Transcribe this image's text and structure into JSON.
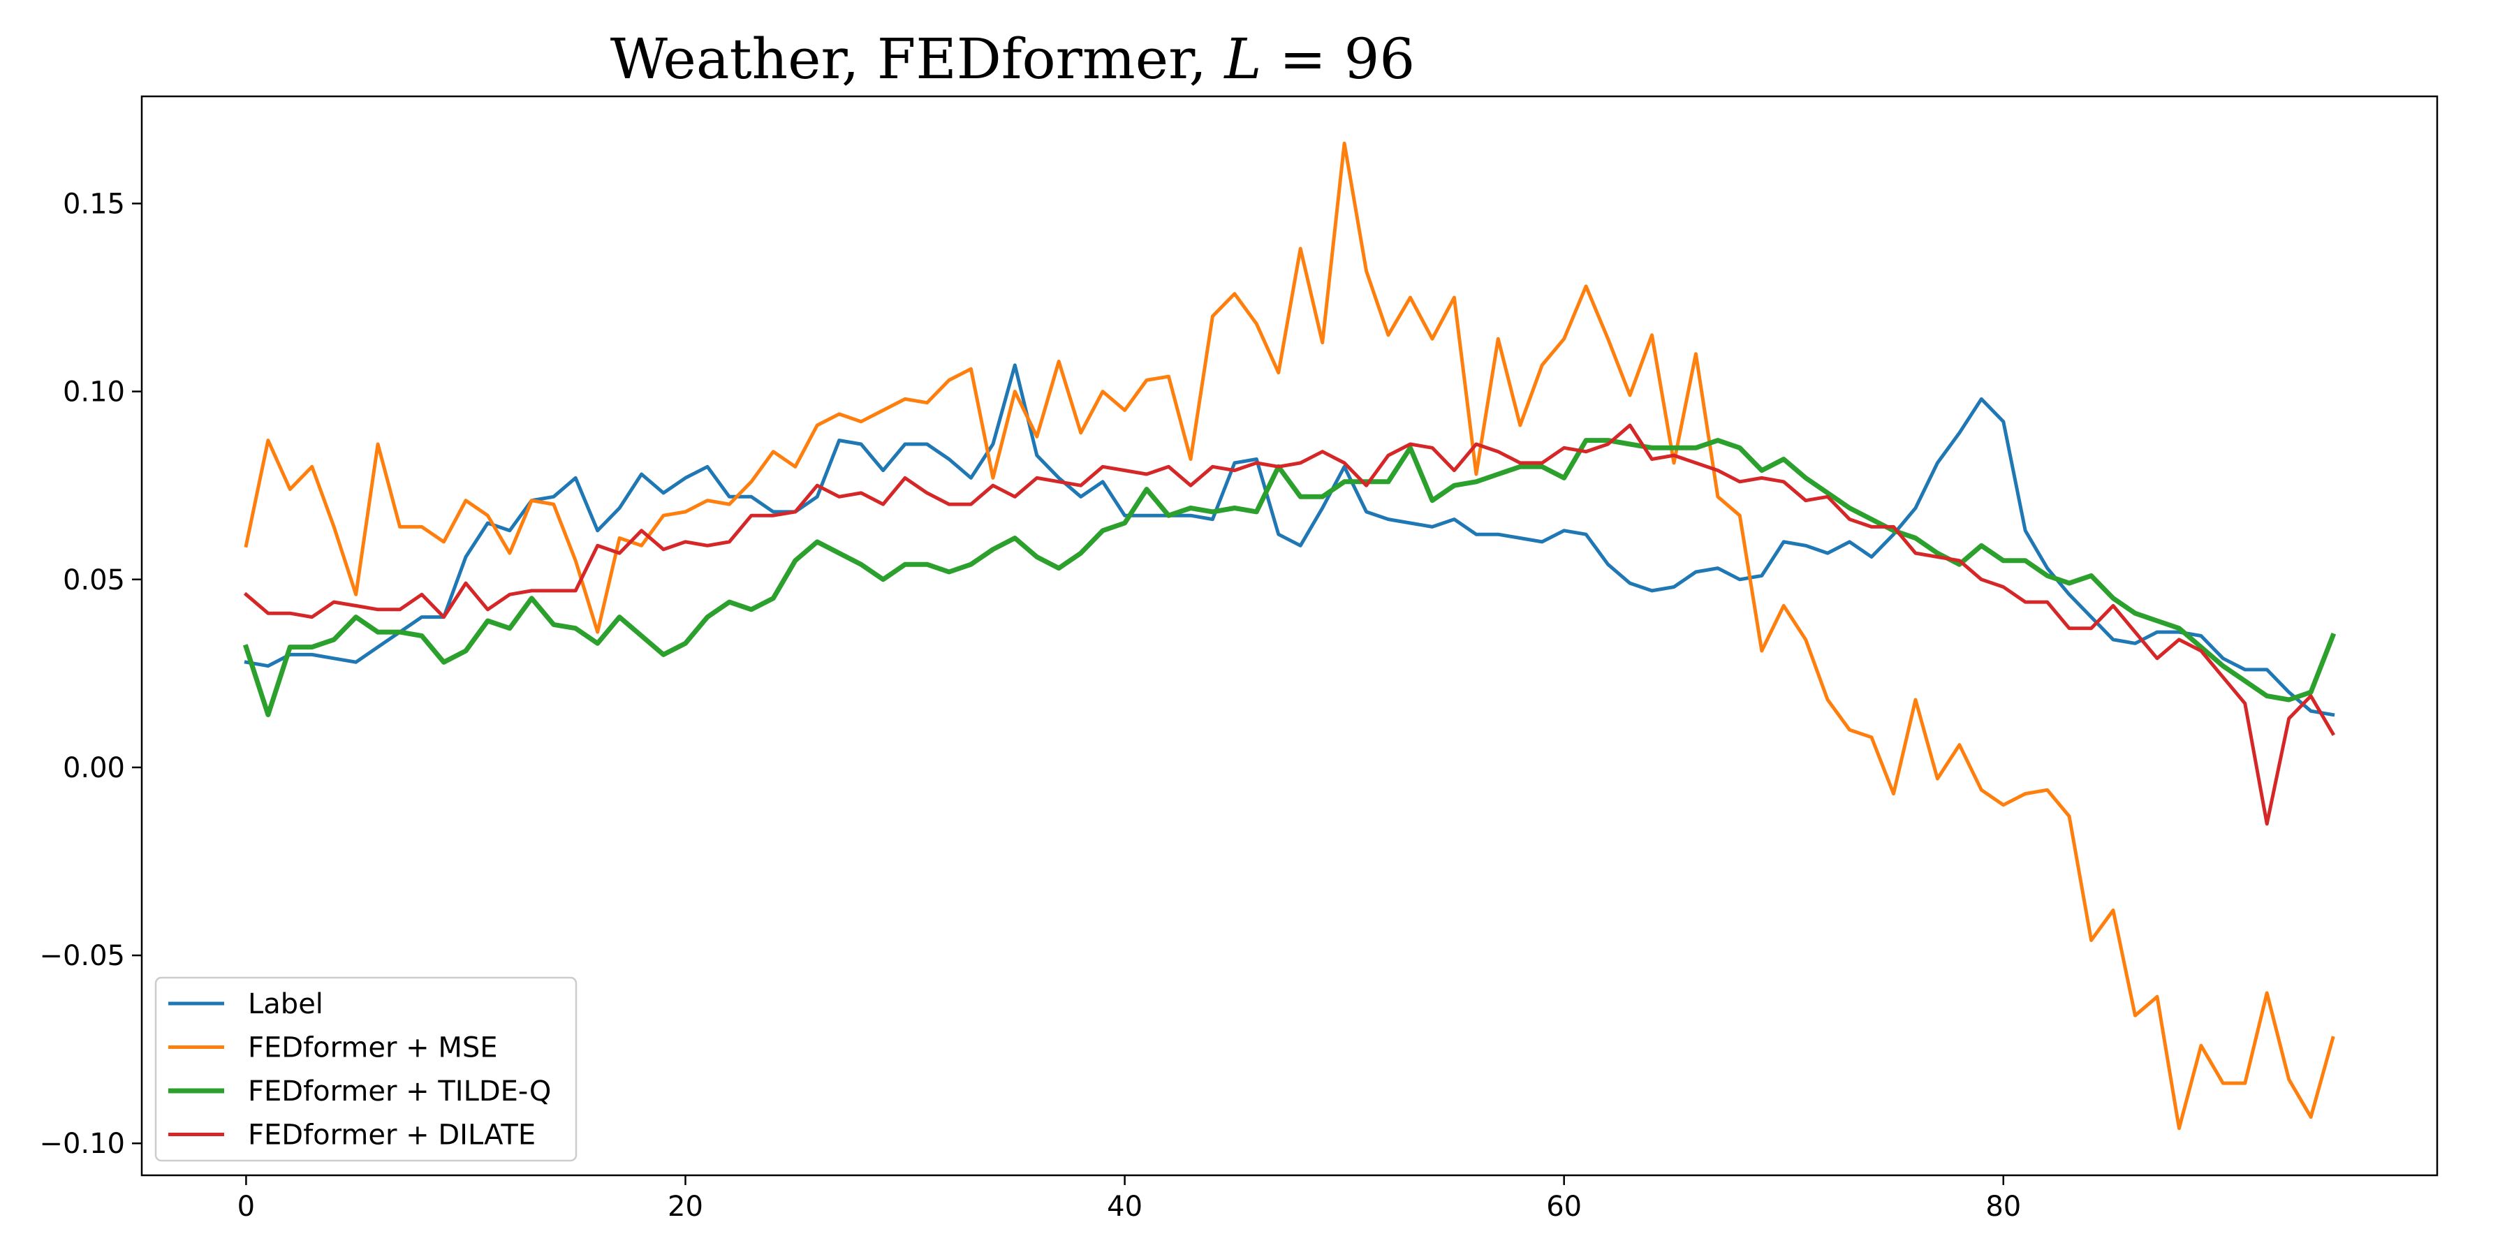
{
  "chart_data": {
    "type": "line",
    "title": "Weather, FEDformer, L = 96",
    "title_parts": [
      "Weather, FEDformer, ",
      "L",
      " = 96"
    ],
    "xlabel": "",
    "ylabel": "",
    "xlim": [
      -4.75,
      99.75
    ],
    "ylim": [
      -0.1085,
      0.1785
    ],
    "xticks": [
      0,
      20,
      40,
      60,
      80
    ],
    "xtick_labels": [
      "0",
      "20",
      "40",
      "60",
      "80"
    ],
    "yticks": [
      -0.1,
      -0.05,
      0.0,
      0.05,
      0.1,
      0.15
    ],
    "ytick_labels": [
      "−0.10",
      "−0.05",
      "0.00",
      "0.05",
      "0.10",
      "0.15"
    ],
    "grid": false,
    "legend_position": "lower-left",
    "series": [
      {
        "name": "Label",
        "color": "#1f77b4",
        "values": [
          0.028,
          0.027,
          0.03,
          0.03,
          0.029,
          0.028,
          0.032,
          0.036,
          0.04,
          0.04,
          0.056,
          0.065,
          0.063,
          0.071,
          0.072,
          0.077,
          0.063,
          0.069,
          0.078,
          0.073,
          0.077,
          0.08,
          0.072,
          0.072,
          0.068,
          0.068,
          0.072,
          0.087,
          0.086,
          0.079,
          0.086,
          0.086,
          0.082,
          0.077,
          0.086,
          0.107,
          0.083,
          0.077,
          0.072,
          0.076,
          0.067,
          0.067,
          0.067,
          0.067,
          0.066,
          0.081,
          0.082,
          0.062,
          0.059,
          0.069,
          0.08,
          0.068,
          0.066,
          0.065,
          0.064,
          0.066,
          0.062,
          0.062,
          0.061,
          0.06,
          0.063,
          0.062,
          0.054,
          0.049,
          0.047,
          0.048,
          0.052,
          0.053,
          0.05,
          0.051,
          0.06,
          0.059,
          0.057,
          0.06,
          0.056,
          0.062,
          0.069,
          0.081,
          0.089,
          0.098,
          0.092,
          0.063,
          0.053,
          0.046,
          0.04,
          0.034,
          0.033,
          0.036,
          0.036,
          0.035,
          0.029,
          0.026,
          0.026,
          0.02,
          0.015,
          0.014
        ]
      },
      {
        "name": "FEDformer + MSE",
        "color": "#ff7f0e",
        "values": [
          0.059,
          0.087,
          0.074,
          0.08,
          0.064,
          0.046,
          0.086,
          0.064,
          0.064,
          0.06,
          0.071,
          0.067,
          0.057,
          0.071,
          0.07,
          0.055,
          0.036,
          0.061,
          0.059,
          0.067,
          0.068,
          0.071,
          0.07,
          0.076,
          0.084,
          0.08,
          0.091,
          0.094,
          0.092,
          0.095,
          0.098,
          0.097,
          0.103,
          0.106,
          0.077,
          0.1,
          0.088,
          0.108,
          0.089,
          0.1,
          0.095,
          0.103,
          0.104,
          0.082,
          0.12,
          0.126,
          0.118,
          0.105,
          0.138,
          0.113,
          0.166,
          0.132,
          0.115,
          0.125,
          0.114,
          0.125,
          0.078,
          0.114,
          0.091,
          0.107,
          0.114,
          0.128,
          0.114,
          0.099,
          0.115,
          0.081,
          0.11,
          0.072,
          0.067,
          0.031,
          0.043,
          0.034,
          0.018,
          0.01,
          0.008,
          -0.007,
          0.018,
          -0.003,
          0.006,
          -0.006,
          -0.01,
          -0.007,
          -0.006,
          -0.013,
          -0.046,
          -0.038,
          -0.066,
          -0.061,
          -0.096,
          -0.074,
          -0.084,
          -0.084,
          -0.06,
          -0.083,
          -0.093,
          -0.072
        ]
      },
      {
        "name": "FEDformer + TILDE-Q",
        "color": "#2ca02c",
        "values": [
          0.032,
          0.014,
          0.032,
          0.032,
          0.034,
          0.04,
          0.036,
          0.036,
          0.035,
          0.028,
          0.031,
          0.039,
          0.037,
          0.045,
          0.038,
          0.037,
          0.033,
          0.04,
          0.035,
          0.03,
          0.033,
          0.04,
          0.044,
          0.042,
          0.045,
          0.055,
          0.06,
          0.057,
          0.054,
          0.05,
          0.054,
          0.054,
          0.052,
          0.054,
          0.058,
          0.061,
          0.056,
          0.053,
          0.057,
          0.063,
          0.065,
          0.074,
          0.067,
          0.069,
          0.068,
          0.069,
          0.068,
          0.08,
          0.072,
          0.072,
          0.076,
          0.076,
          0.076,
          0.085,
          0.071,
          0.075,
          0.076,
          0.078,
          0.08,
          0.08,
          0.077,
          0.087,
          0.087,
          0.086,
          0.085,
          0.085,
          0.085,
          0.087,
          0.085,
          0.079,
          0.082,
          0.077,
          0.073,
          0.069,
          0.066,
          0.063,
          0.061,
          0.057,
          0.054,
          0.059,
          0.055,
          0.055,
          0.051,
          0.049,
          0.051,
          0.045,
          0.041,
          0.039,
          0.037,
          0.032,
          0.027,
          0.023,
          0.019,
          0.018,
          0.02,
          0.035
        ]
      },
      {
        "name": "FEDformer + DILATE",
        "color": "#d62728",
        "values": [
          0.046,
          0.041,
          0.041,
          0.04,
          0.044,
          0.043,
          0.042,
          0.042,
          0.046,
          0.04,
          0.049,
          0.042,
          0.046,
          0.047,
          0.047,
          0.047,
          0.059,
          0.057,
          0.063,
          0.058,
          0.06,
          0.059,
          0.06,
          0.067,
          0.067,
          0.068,
          0.075,
          0.072,
          0.073,
          0.07,
          0.077,
          0.073,
          0.07,
          0.07,
          0.075,
          0.072,
          0.077,
          0.076,
          0.075,
          0.08,
          0.079,
          0.078,
          0.08,
          0.075,
          0.08,
          0.079,
          0.081,
          0.08,
          0.081,
          0.084,
          0.081,
          0.075,
          0.083,
          0.086,
          0.085,
          0.079,
          0.086,
          0.084,
          0.081,
          0.081,
          0.085,
          0.084,
          0.086,
          0.091,
          0.082,
          0.083,
          0.081,
          0.079,
          0.076,
          0.077,
          0.076,
          0.071,
          0.072,
          0.066,
          0.064,
          0.064,
          0.057,
          0.056,
          0.055,
          0.05,
          0.048,
          0.044,
          0.044,
          0.037,
          0.037,
          0.043,
          0.036,
          0.029,
          0.034,
          0.031,
          0.024,
          0.017,
          -0.015,
          0.013,
          0.019,
          0.009
        ]
      }
    ]
  }
}
